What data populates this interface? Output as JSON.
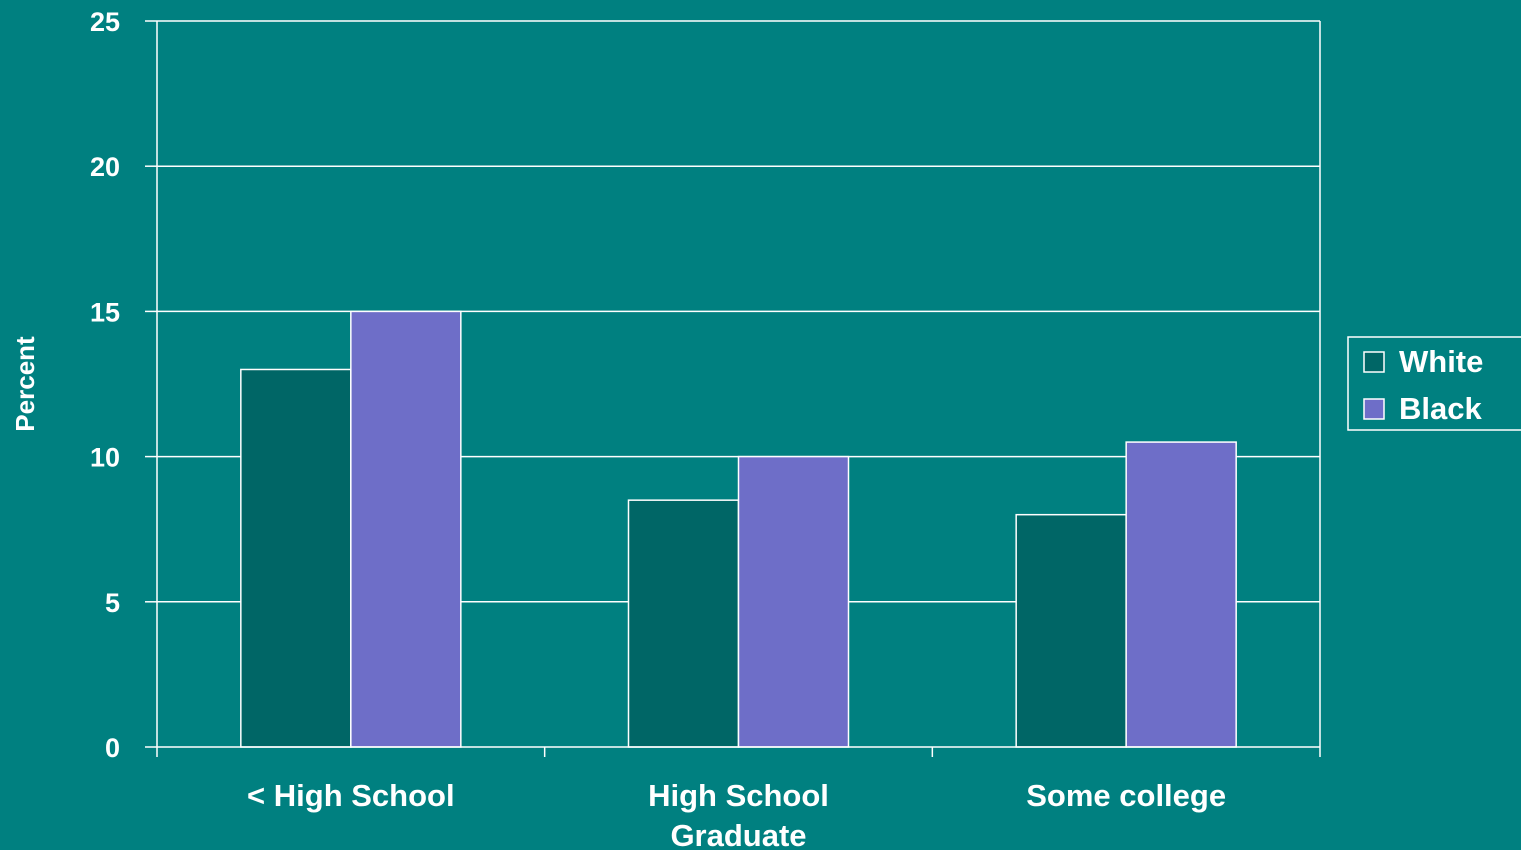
{
  "chart_data": {
    "type": "bar",
    "title": "",
    "xlabel": "",
    "ylabel": "Percent",
    "ylim": [
      0,
      25
    ],
    "yticks": [
      0,
      5,
      10,
      15,
      20,
      25
    ],
    "grid": true,
    "legend_position": "right",
    "categories": [
      [
        "< High School"
      ],
      [
        "High School",
        "Graduate"
      ],
      [
        "Some college"
      ]
    ],
    "series": [
      {
        "name": "White",
        "color": "#006666",
        "values": [
          13,
          8.5,
          8
        ]
      },
      {
        "name": "Black",
        "color": "#6e6ec8",
        "values": [
          15,
          10,
          10.5
        ]
      }
    ]
  }
}
